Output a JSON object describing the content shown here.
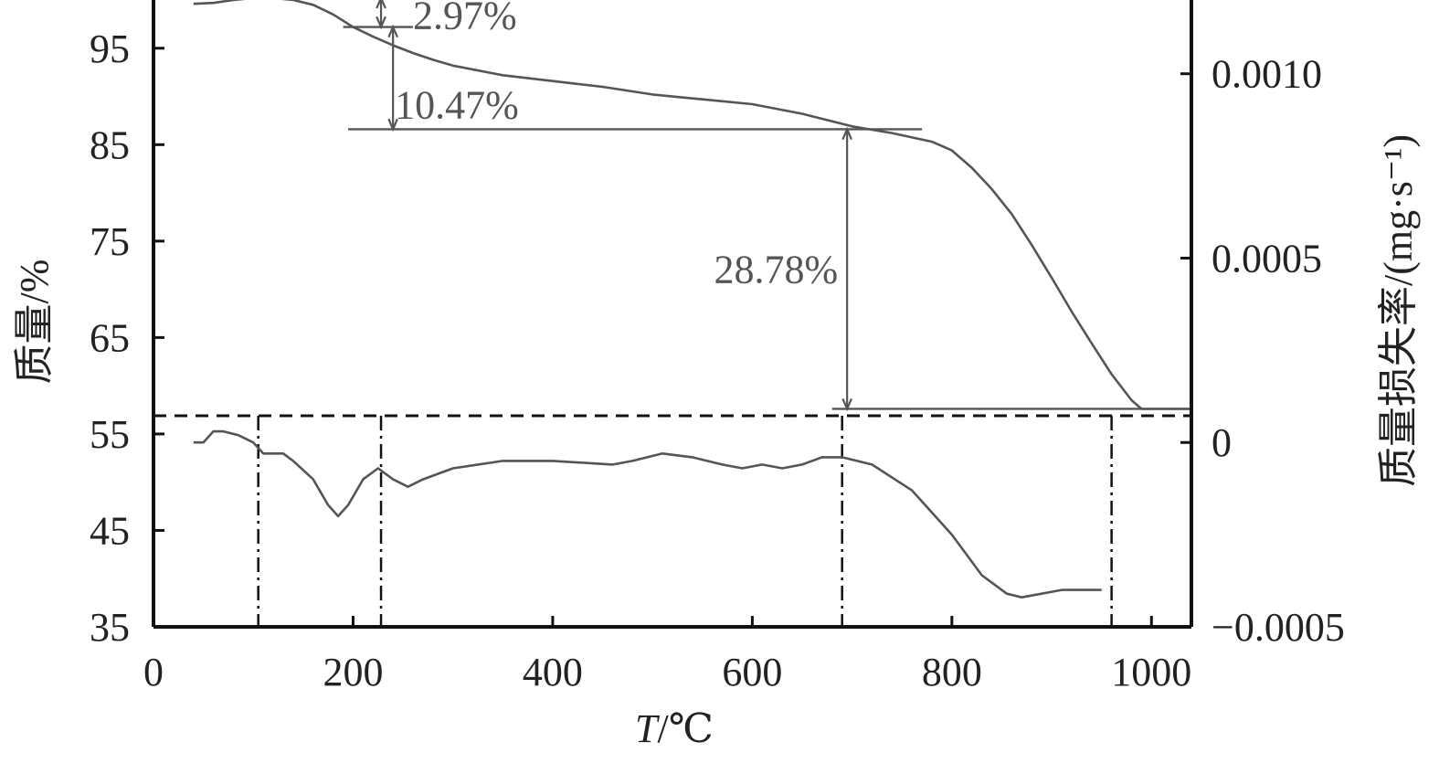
{
  "chart_data": {
    "type": "line",
    "xlabel": {
      "italic": "T",
      "rest": "/℃"
    },
    "ylabel_left": "质量/%",
    "ylabel_right": "质量损失率/(mg·s⁻¹)",
    "xlim": [
      0,
      1040
    ],
    "ylim_left": [
      35,
      100
    ],
    "ylim_right": [
      -0.0005,
      0.0012
    ],
    "x_ticks": [
      0,
      200,
      400,
      600,
      800,
      1000
    ],
    "x_tick_labels": [
      "0",
      "200",
      "400",
      "600",
      "800",
      "1000"
    ],
    "y_left_ticks": [
      35,
      45,
      55,
      65,
      75,
      85,
      95
    ],
    "y_left_tick_labels": [
      "35",
      "45",
      "55",
      "65",
      "75",
      "85",
      "95"
    ],
    "y_right_ticks": [
      -0.0005,
      0,
      0.0005,
      0.001
    ],
    "y_right_tick_labels": [
      "−0.0005",
      "0",
      "0.0005",
      "0.0010"
    ],
    "grid": false,
    "series": [
      {
        "axis": "left",
        "color": "#555555",
        "points": [
          [
            40,
            99.6
          ],
          [
            60,
            99.7
          ],
          [
            80,
            100.0
          ],
          [
            100,
            100.2
          ],
          [
            120,
            100.2
          ],
          [
            140,
            100.0
          ],
          [
            160,
            99.5
          ],
          [
            180,
            98.5
          ],
          [
            200,
            97.2
          ],
          [
            220,
            96.2
          ],
          [
            240,
            95.3
          ],
          [
            260,
            94.5
          ],
          [
            280,
            93.8
          ],
          [
            300,
            93.2
          ],
          [
            350,
            92.2
          ],
          [
            400,
            91.6
          ],
          [
            450,
            91.0
          ],
          [
            500,
            90.2
          ],
          [
            550,
            89.7
          ],
          [
            600,
            89.2
          ],
          [
            650,
            88.2
          ],
          [
            700,
            86.9
          ],
          [
            740,
            86.2
          ],
          [
            780,
            85.3
          ],
          [
            800,
            84.4
          ],
          [
            820,
            82.6
          ],
          [
            840,
            80.4
          ],
          [
            860,
            77.8
          ],
          [
            880,
            74.6
          ],
          [
            900,
            71.2
          ],
          [
            920,
            67.7
          ],
          [
            940,
            64.4
          ],
          [
            960,
            61.2
          ],
          [
            980,
            58.5
          ],
          [
            990,
            57.6
          ],
          [
            1040,
            57.6
          ]
        ]
      },
      {
        "axis": "right",
        "color": "#555555",
        "points": [
          [
            40,
            0.0
          ],
          [
            50,
            0.0
          ],
          [
            60,
            3e-05
          ],
          [
            70,
            3e-05
          ],
          [
            85,
            2e-05
          ],
          [
            100,
            0.0
          ],
          [
            110,
            -3e-05
          ],
          [
            120,
            -3e-05
          ],
          [
            130,
            -3e-05
          ],
          [
            140,
            -5e-05
          ],
          [
            160,
            -0.0001
          ],
          [
            175,
            -0.00017
          ],
          [
            185,
            -0.0002
          ],
          [
            195,
            -0.00017
          ],
          [
            210,
            -0.0001
          ],
          [
            225,
            -7e-05
          ],
          [
            240,
            -0.0001
          ],
          [
            255,
            -0.00012
          ],
          [
            270,
            -0.0001
          ],
          [
            300,
            -7e-05
          ],
          [
            350,
            -5e-05
          ],
          [
            400,
            -5e-05
          ],
          [
            460,
            -6e-05
          ],
          [
            480,
            -5e-05
          ],
          [
            510,
            -3e-05
          ],
          [
            540,
            -4e-05
          ],
          [
            570,
            -6e-05
          ],
          [
            590,
            -7e-05
          ],
          [
            610,
            -6e-05
          ],
          [
            630,
            -7e-05
          ],
          [
            650,
            -6e-05
          ],
          [
            670,
            -4e-05
          ],
          [
            690,
            -4e-05
          ],
          [
            720,
            -6e-05
          ],
          [
            760,
            -0.00013
          ],
          [
            800,
            -0.00025
          ],
          [
            830,
            -0.00036
          ],
          [
            855,
            -0.00041
          ],
          [
            870,
            -0.00042
          ],
          [
            890,
            -0.00041
          ],
          [
            910,
            -0.0004
          ],
          [
            950,
            -0.0004
          ]
        ]
      }
    ],
    "boundary_temperatures": [
      105,
      228,
      690,
      960
    ],
    "mass_loss_annotations": [
      {
        "label": "2.97%",
        "x": 228,
        "y_from": 100.2,
        "y_to": 97.2
      },
      {
        "label": "10.47%",
        "x": 240,
        "y_from": 97.2,
        "y_to": 86.6
      },
      {
        "label": "28.78%",
        "x": 695,
        "y_from": 86.6,
        "y_to": 57.6
      }
    ]
  }
}
